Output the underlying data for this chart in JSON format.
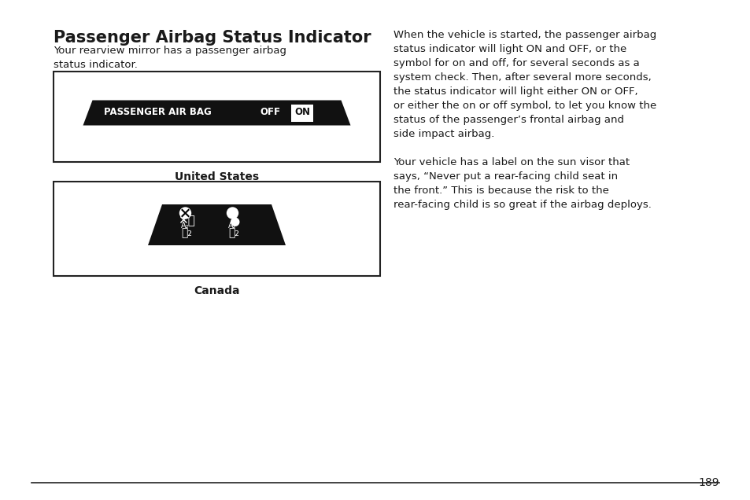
{
  "title": "Passenger Airbag Status Indicator",
  "subtitle": "Your rearview mirror has a passenger airbag\nstatus indicator.",
  "right_text": "When the vehicle is started, the passenger airbag\nstatus indicator will light ON and OFF, or the\nsymbol for on and off, for several seconds as a\nsystem check. Then, after several more seconds,\nthe status indicator will light either ON or OFF,\nor either the on or off symbol, to let you know the\nstatus of the passenger’s frontal airbag and\nside impact airbag.\n\nYour vehicle has a label on the sun visor that\nsays, “Never put a rear-facing child seat in\nthe front.” This is because the risk to the\nrear-facing child is so great if the airbag deploys.",
  "us_label": "United States",
  "canada_label": "Canada",
  "page_number": "189",
  "bg_color": "#ffffff",
  "text_color": "#1a1a1a",
  "box_stroke": "#222222",
  "indicator_bg": "#111111",
  "indicator_text_color": "#ffffff",
  "on_box_bg": "#ffffff",
  "on_box_text": "#111111"
}
